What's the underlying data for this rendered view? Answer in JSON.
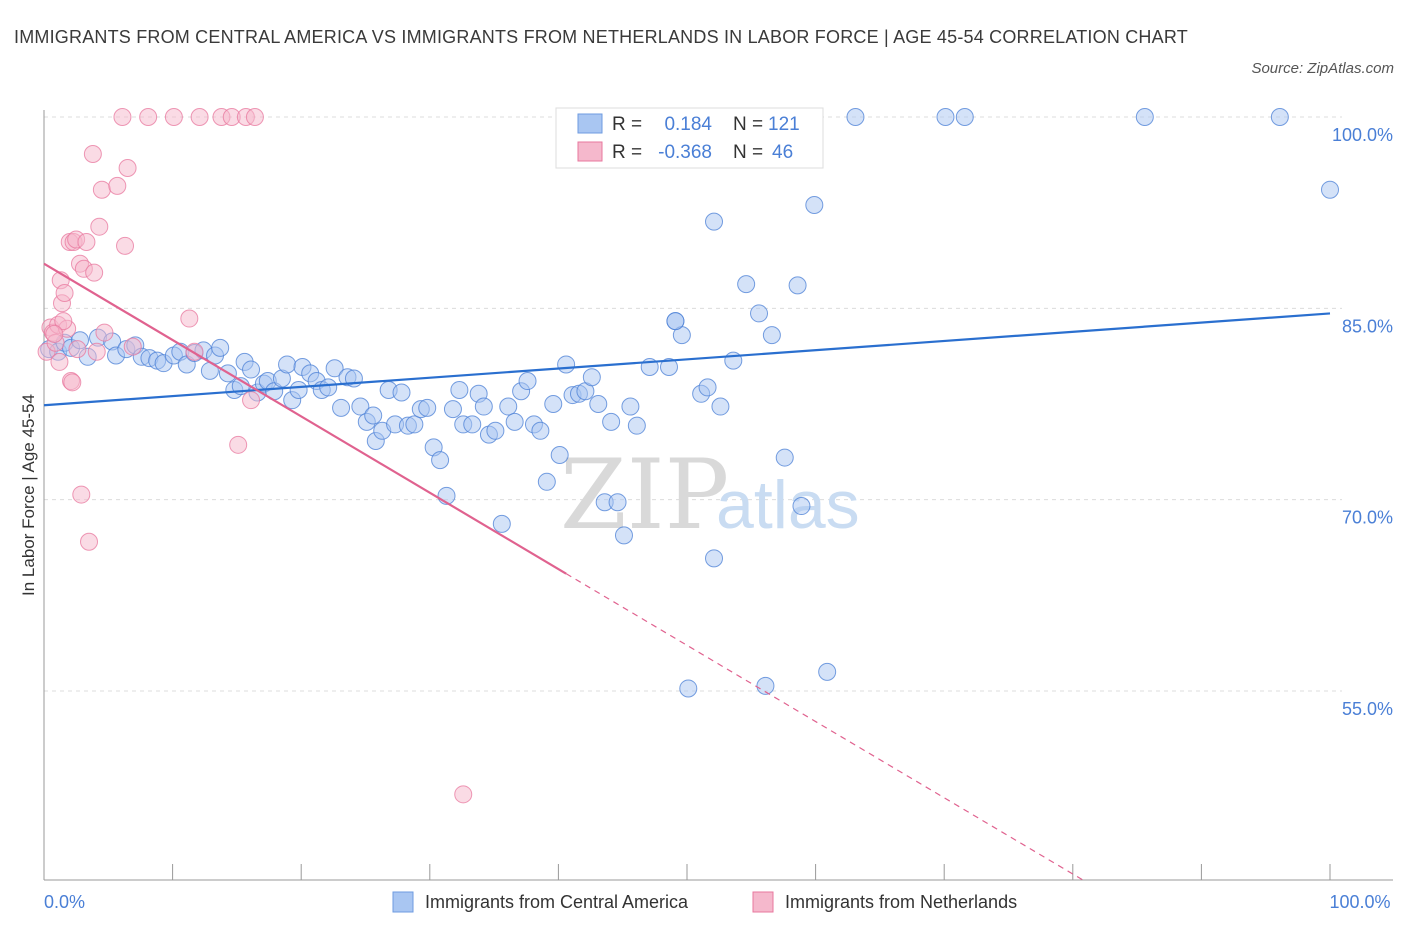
{
  "title": "IMMIGRANTS FROM CENTRAL AMERICA VS IMMIGRANTS FROM NETHERLANDS IN LABOR FORCE | AGE 45-54 CORRELATION CHART",
  "source": "Source: ZipAtlas.com",
  "colors": {
    "blue": "#4a7fd6",
    "blue_fill": "#a9c6f2",
    "blue_line": "#2a6fcf",
    "pink": "#e8779e",
    "pink_fill": "#f5b8cc",
    "pink_line": "#e0628f",
    "tick_label": "#4a7fd6",
    "grid": "#dcdcdc"
  },
  "chart_data": {
    "type": "scatter",
    "xlabel": "",
    "ylabel": "In Labor Force | Age 45-54",
    "xlim": [
      0,
      100
    ],
    "ylim": [
      40,
      100
    ],
    "x_tick_labels": [
      {
        "value": 0,
        "label": "0.0%"
      },
      {
        "value": 100,
        "label": "100.0%"
      }
    ],
    "y_tick_labels": [
      {
        "value": 100,
        "label": "100.0%"
      },
      {
        "value": 85,
        "label": "85.0%"
      },
      {
        "value": 70,
        "label": "70.0%"
      },
      {
        "value": 55,
        "label": "55.0%"
      }
    ],
    "x_minor_ticks": [
      0,
      10,
      20,
      30,
      40,
      50,
      60,
      70,
      80,
      90,
      100
    ],
    "legend": {
      "top": [
        {
          "r_label": "R =",
          "r_value": "0.184",
          "n_label": "N =",
          "n_value": "121",
          "series": "central_america"
        },
        {
          "r_label": "R =",
          "r_value": "-0.368",
          "n_label": "N =",
          "n_value": "46",
          "series": "netherlands"
        }
      ],
      "bottom": [
        {
          "label": "Immigrants from Central America",
          "series": "central_america"
        },
        {
          "label": "Immigrants from Netherlands",
          "series": "netherlands"
        }
      ]
    },
    "watermark": {
      "zip": "ZIP",
      "atlas": "atlas"
    },
    "series": [
      {
        "name": "Immigrants from Central America",
        "key": "central_america",
        "trend": {
          "x0": 0,
          "y0": 77.4,
          "x1": 100,
          "y1": 84.6
        },
        "points": [
          [
            0.4,
            81.8
          ],
          [
            1.1,
            81.6
          ],
          [
            1.6,
            82.3
          ],
          [
            2.1,
            81.9
          ],
          [
            2.8,
            82.5
          ],
          [
            3.4,
            81.2
          ],
          [
            4.2,
            82.7
          ],
          [
            5.3,
            82.4
          ],
          [
            5.6,
            81.3
          ],
          [
            6.4,
            81.8
          ],
          [
            7.1,
            82.1
          ],
          [
            7.6,
            81.2
          ],
          [
            8.2,
            81.1
          ],
          [
            8.8,
            80.9
          ],
          [
            9.3,
            80.7
          ],
          [
            10.1,
            81.3
          ],
          [
            10.6,
            81.6
          ],
          [
            11.1,
            80.6
          ],
          [
            11.7,
            81.5
          ],
          [
            12.4,
            81.7
          ],
          [
            12.9,
            80.1
          ],
          [
            13.3,
            81.3
          ],
          [
            13.7,
            81.9
          ],
          [
            14.3,
            79.9
          ],
          [
            14.8,
            78.6
          ],
          [
            15.3,
            78.9
          ],
          [
            15.6,
            80.8
          ],
          [
            16.1,
            80.2
          ],
          [
            16.6,
            78.4
          ],
          [
            17.1,
            79.1
          ],
          [
            17.4,
            79.3
          ],
          [
            17.9,
            78.5
          ],
          [
            18.5,
            79.5
          ],
          [
            18.9,
            80.6
          ],
          [
            19.3,
            77.8
          ],
          [
            19.8,
            78.6
          ],
          [
            20.1,
            80.4
          ],
          [
            20.7,
            79.9
          ],
          [
            21.2,
            79.3
          ],
          [
            21.6,
            78.6
          ],
          [
            22.1,
            78.8
          ],
          [
            22.6,
            80.3
          ],
          [
            23.1,
            77.2
          ],
          [
            23.6,
            79.6
          ],
          [
            24.1,
            79.5
          ],
          [
            24.6,
            77.3
          ],
          [
            25.1,
            76.1
          ],
          [
            25.6,
            76.6
          ],
          [
            25.8,
            74.6
          ],
          [
            26.3,
            75.4
          ],
          [
            26.8,
            78.6
          ],
          [
            27.3,
            75.9
          ],
          [
            27.8,
            78.4
          ],
          [
            28.3,
            75.8
          ],
          [
            28.8,
            75.9
          ],
          [
            29.3,
            77.1
          ],
          [
            29.8,
            77.2
          ],
          [
            30.3,
            74.1
          ],
          [
            30.8,
            73.1
          ],
          [
            31.3,
            70.3
          ],
          [
            31.8,
            77.1
          ],
          [
            32.3,
            78.6
          ],
          [
            32.6,
            75.9
          ],
          [
            33.3,
            75.9
          ],
          [
            33.8,
            78.3
          ],
          [
            34.2,
            77.3
          ],
          [
            34.6,
            75.1
          ],
          [
            35.1,
            75.4
          ],
          [
            35.6,
            68.1
          ],
          [
            36.1,
            77.3
          ],
          [
            36.6,
            76.1
          ],
          [
            37.1,
            78.5
          ],
          [
            37.6,
            79.3
          ],
          [
            38.1,
            75.9
          ],
          [
            38.6,
            75.4
          ],
          [
            39.1,
            71.4
          ],
          [
            39.6,
            77.5
          ],
          [
            40.1,
            73.5
          ],
          [
            40.6,
            80.6
          ],
          [
            41.1,
            78.2
          ],
          [
            41.6,
            78.3
          ],
          [
            42.1,
            78.5
          ],
          [
            42.6,
            79.6
          ],
          [
            43.1,
            77.5
          ],
          [
            43.6,
            69.8
          ],
          [
            44.1,
            76.1
          ],
          [
            44.6,
            69.8
          ],
          [
            45.1,
            67.2
          ],
          [
            45.6,
            77.3
          ],
          [
            46.1,
            75.8
          ],
          [
            47.1,
            80.4
          ],
          [
            48.1,
            100
          ],
          [
            48.6,
            80.4
          ],
          [
            49.1,
            84.0
          ],
          [
            49.6,
            82.9
          ],
          [
            51.1,
            100
          ],
          [
            52.1,
            91.8
          ],
          [
            55.1,
            100
          ],
          [
            63.1,
            100
          ],
          [
            70.1,
            100
          ],
          [
            71.6,
            100
          ],
          [
            85.6,
            100
          ],
          [
            96.1,
            100
          ],
          [
            100.0,
            94.3
          ],
          [
            49.1,
            84.0
          ],
          [
            50.1,
            55.2
          ],
          [
            51.1,
            78.3
          ],
          [
            51.6,
            78.8
          ],
          [
            52.1,
            65.4
          ],
          [
            52.6,
            77.3
          ],
          [
            53.6,
            80.9
          ],
          [
            54.6,
            86.9
          ],
          [
            55.6,
            84.6
          ],
          [
            56.6,
            82.9
          ],
          [
            56.1,
            55.4
          ],
          [
            57.6,
            73.3
          ],
          [
            58.6,
            86.8
          ],
          [
            58.9,
            69.5
          ],
          [
            59.9,
            93.1
          ],
          [
            60.9,
            56.5
          ]
        ]
      },
      {
        "name": "Immigrants from Netherlands",
        "key": "netherlands",
        "trend": {
          "x0": 0,
          "y0": 88.5,
          "x1": 40.6,
          "y1": 64.2,
          "x2": 100,
          "y2": 28.7
        },
        "points": [
          [
            0.2,
            81.6
          ],
          [
            0.5,
            83.5
          ],
          [
            0.7,
            83.1
          ],
          [
            0.9,
            82.3
          ],
          [
            1.1,
            83.7
          ],
          [
            1.2,
            80.8
          ],
          [
            1.3,
            87.2
          ],
          [
            1.4,
            85.4
          ],
          [
            1.6,
            86.2
          ],
          [
            1.8,
            83.4
          ],
          [
            2.0,
            90.2
          ],
          [
            2.1,
            79.3
          ],
          [
            2.3,
            90.2
          ],
          [
            2.5,
            90.4
          ],
          [
            2.6,
            81.8
          ],
          [
            2.8,
            88.5
          ],
          [
            2.9,
            70.4
          ],
          [
            3.1,
            88.1
          ],
          [
            3.3,
            90.2
          ],
          [
            3.5,
            66.7
          ],
          [
            3.8,
            97.1
          ],
          [
            3.9,
            87.8
          ],
          [
            4.1,
            81.6
          ],
          [
            4.3,
            91.4
          ],
          [
            4.5,
            94.3
          ],
          [
            4.7,
            83.1
          ],
          [
            5.7,
            94.6
          ],
          [
            6.1,
            100
          ],
          [
            6.3,
            89.9
          ],
          [
            6.5,
            96.0
          ],
          [
            6.9,
            82.0
          ],
          [
            8.1,
            100
          ],
          [
            10.1,
            100
          ],
          [
            11.3,
            84.2
          ],
          [
            11.7,
            81.6
          ],
          [
            12.1,
            100
          ],
          [
            13.8,
            100
          ],
          [
            14.6,
            100
          ],
          [
            15.7,
            100
          ],
          [
            16.4,
            100
          ],
          [
            15.1,
            74.3
          ],
          [
            16.1,
            77.8
          ],
          [
            32.6,
            46.9
          ],
          [
            2.2,
            79.2
          ],
          [
            1.5,
            84.0
          ],
          [
            0.8,
            83.0
          ]
        ]
      }
    ]
  }
}
